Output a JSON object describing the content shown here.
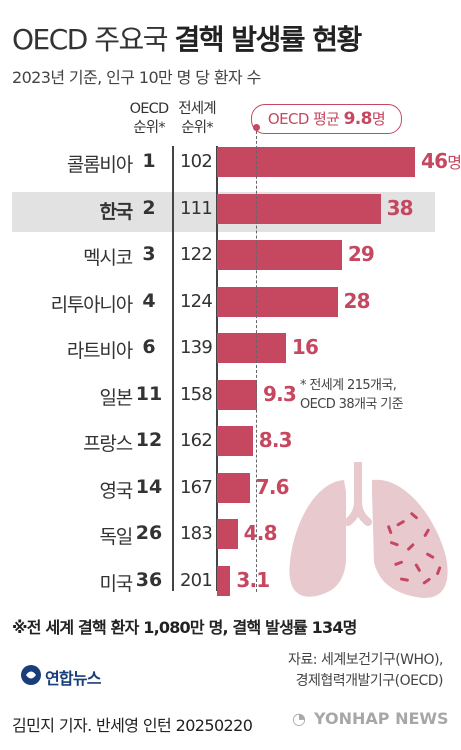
{
  "header": {
    "title_light": "OECD 주요국 ",
    "title_bold": "결핵 발생률 현황",
    "subtitle": "2023년 기준, 인구 10만 명 당 환자 수"
  },
  "columns": {
    "oecd_rank": "OECD\n순위*",
    "world_rank": "전세계\n순위*"
  },
  "average": {
    "label": "OECD 평균 ",
    "value": "9.8",
    "unit": "명"
  },
  "rank_note": "* 전세계 215개국,\n OECD 38개국 기준",
  "footnote": "※전 세계 결핵 환자 1,080만 명, 결핵 발생률 134명",
  "source": "자료: 세계보건기구(WHO),\n경제협력개발기구(OECD)",
  "logo": "연합뉴스",
  "credit": "김민지 기자. 반세영 인턴  20250220",
  "watermark": "YONHAP NEWS",
  "colors": {
    "bar": "#c64760",
    "highlight_row": "#e2e2e2",
    "lungs": "#e8c9ce"
  },
  "chart_data": {
    "type": "bar",
    "orientation": "horizontal",
    "title": "OECD 주요국 결핵 발생률 현황",
    "subtitle": "2023년 기준, 인구 10만 명 당 환자 수",
    "unit": "명",
    "highlight": "한국",
    "reference_line": {
      "label": "OECD 평균",
      "value": 9.8
    },
    "rows": [
      {
        "country": "콜롬비아",
        "oecd_rank": "1",
        "world_rank": "102",
        "value": 46,
        "label": "46",
        "unit": "명"
      },
      {
        "country": "한국",
        "oecd_rank": "2",
        "world_rank": "111",
        "value": 38,
        "label": "38"
      },
      {
        "country": "멕시코",
        "oecd_rank": "3",
        "world_rank": "122",
        "value": 29,
        "label": "29"
      },
      {
        "country": "리투아니아",
        "oecd_rank": "4",
        "world_rank": "124",
        "value": 28,
        "label": "28"
      },
      {
        "country": "라트비아",
        "oecd_rank": "6",
        "world_rank": "139",
        "value": 16,
        "label": "16"
      },
      {
        "country": "일본",
        "oecd_rank": "11",
        "world_rank": "158",
        "value": 9.3,
        "label": "9.3"
      },
      {
        "country": "프랑스",
        "oecd_rank": "12",
        "world_rank": "162",
        "value": 8.3,
        "label": "8.3"
      },
      {
        "country": "영국",
        "oecd_rank": "14",
        "world_rank": "167",
        "value": 7.6,
        "label": "7.6"
      },
      {
        "country": "독일",
        "oecd_rank": "26",
        "world_rank": "183",
        "value": 4.8,
        "label": "4.8"
      },
      {
        "country": "미국",
        "oecd_rank": "36",
        "world_rank": "201",
        "value": 3.1,
        "label": "3.1"
      }
    ]
  }
}
